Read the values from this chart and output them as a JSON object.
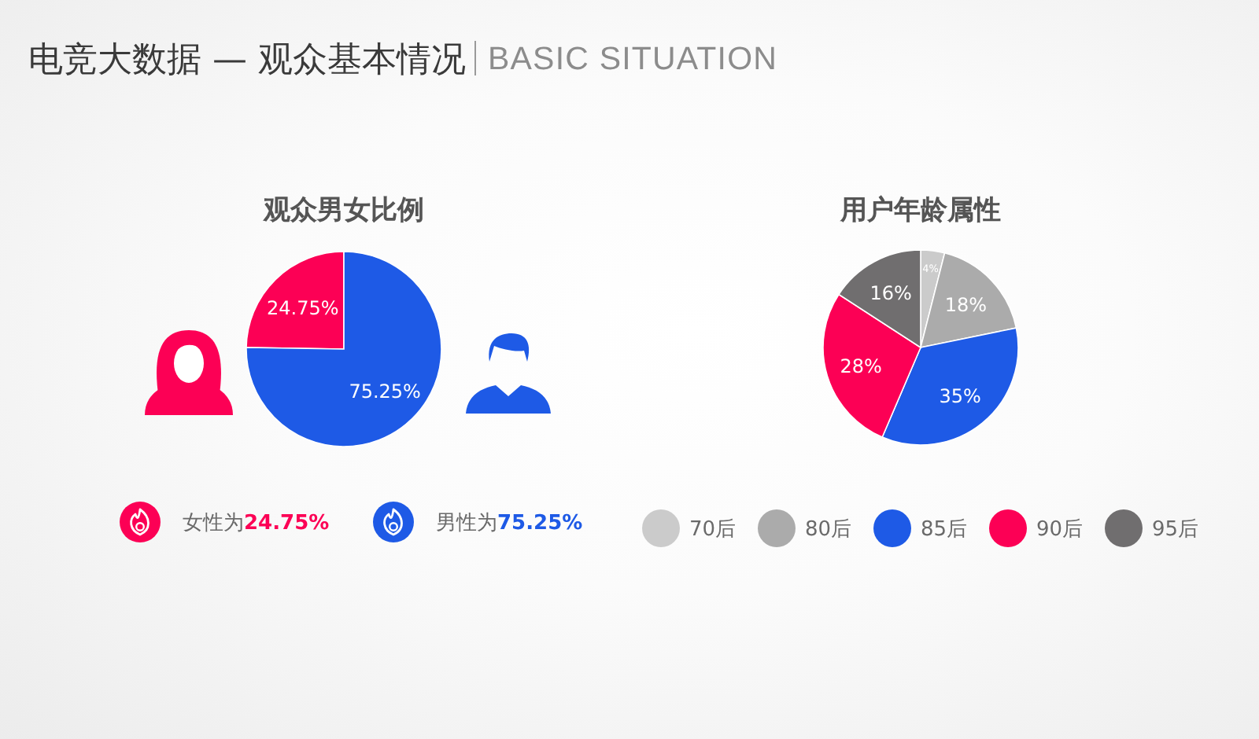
{
  "chart_data": [
    {
      "type": "other",
      "title": "电竞大数据 — 观众基本情况",
      "subtitle": "BASIC SITUATION"
    },
    {
      "type": "pie",
      "title": "观众男女比例",
      "categories": [
        "女性为**24.75%**",
        "男性为**75.25%**"
      ],
      "values": [
        24.75,
        75.25
      ],
      "colors": [
        "#fc0055",
        "#1e5ae6"
      ],
      "value_labels": [
        "24.75%",
        "75.25%"
      ],
      "legend": "bottom"
    },
    {
      "type": "pie",
      "title": "用户年龄属性",
      "categories": [
        "70后",
        "80后",
        "85后",
        "90后",
        "95后"
      ],
      "values": [
        4,
        18,
        35,
        28,
        16
      ],
      "colors": [
        "#cbcbcb",
        "#ababab",
        "#1e5ae6",
        "#fc0055",
        "#706e6f"
      ],
      "value_labels": [
        "4%",
        "18%",
        "35%",
        "28%",
        "16%"
      ],
      "legend": "bottom"
    }
  ]
}
